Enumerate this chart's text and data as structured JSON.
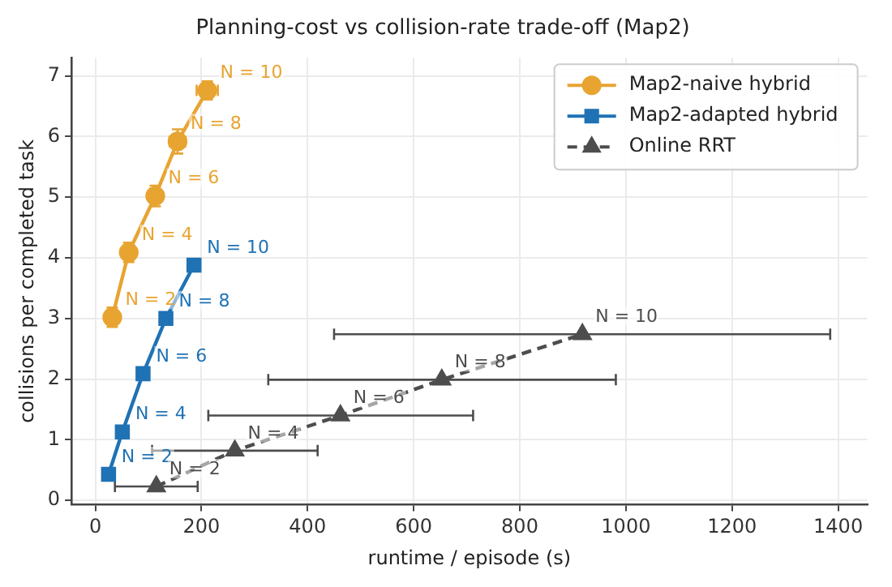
{
  "chart_data": {
    "type": "line",
    "title": "Planning-cost vs collision-rate trade-off (Map2)",
    "xlabel": "runtime / episode (s)",
    "ylabel": "collisions per completed task",
    "xlim": [
      -45,
      1455
    ],
    "ylim": [
      -0.07,
      7.3
    ],
    "xticks": [
      0,
      200,
      400,
      600,
      800,
      1000,
      1200,
      1400
    ],
    "yticks": [
      0,
      1,
      2,
      3,
      4,
      5,
      6,
      7
    ],
    "grid": true,
    "legend": "top right",
    "series": [
      {
        "name": "Map2-naive hybrid",
        "color": "#e8a431",
        "marker": "circle",
        "line_style": "solid",
        "x": [
          32,
          63,
          113,
          155,
          211
        ],
        "values": [
          3.02,
          4.09,
          5.02,
          5.92,
          6.76
        ],
        "errors": [
          0.16,
          0.16,
          0.17,
          0.2,
          0.15
        ],
        "xerrors": [
          5,
          5,
          6,
          15,
          20
        ]
      },
      {
        "name": "Map2-adapted hybrid",
        "color": "#1f72b4",
        "marker": "square",
        "line_style": "solid",
        "x": [
          25,
          51,
          90,
          133,
          186
        ],
        "values": [
          0.43,
          1.13,
          2.09,
          3.0,
          3.88
        ]
      },
      {
        "name": "Online RRT",
        "color": "#4d4d4d",
        "marker": "triangle",
        "line_style": "dashed",
        "x": [
          115,
          263,
          462,
          653,
          918
        ],
        "values": [
          0.23,
          0.82,
          1.4,
          1.99,
          2.74
        ],
        "xerrors": [
          [
            78,
            78
          ],
          [
            156,
            156
          ],
          [
            249,
            250
          ],
          [
            327,
            328
          ],
          [
            468,
            467
          ]
        ]
      }
    ],
    "annotations": [
      {
        "text": "N = 2",
        "x": 32,
        "y": 3.02
      },
      {
        "text": "N = 4",
        "x": 63,
        "y": 4.09
      },
      {
        "text": "N = 6",
        "x": 113,
        "y": 5.02
      },
      {
        "text": "N = 8",
        "x": 155,
        "y": 5.92
      },
      {
        "text": "N = 10",
        "x": 211,
        "y": 6.76
      },
      {
        "text": "N = 2",
        "x": 25,
        "y": 0.43
      },
      {
        "text": "N = 4",
        "x": 51,
        "y": 1.13
      },
      {
        "text": "N = 6",
        "x": 90,
        "y": 2.09
      },
      {
        "text": "N = 8",
        "x": 133,
        "y": 3.0
      },
      {
        "text": "N = 10",
        "x": 186,
        "y": 3.88
      },
      {
        "text": "N = 2",
        "x": 115,
        "y": 0.23
      },
      {
        "text": "N = 4",
        "x": 263,
        "y": 0.82
      },
      {
        "text": "N = 6",
        "x": 462,
        "y": 1.4
      },
      {
        "text": "N = 8",
        "x": 653,
        "y": 1.99
      },
      {
        "text": "N = 10",
        "x": 918,
        "y": 2.74
      }
    ]
  }
}
